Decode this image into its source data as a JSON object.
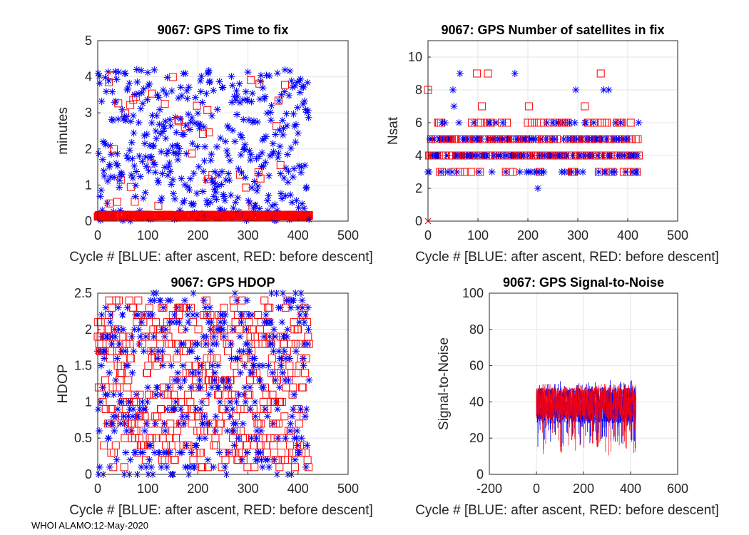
{
  "footer": "WHOI ALAMO:12-May-2020",
  "colors": {
    "after_ascent": "#0000ff",
    "before_descent": "#ff0000",
    "grid": "#e6e6e6",
    "axis": "#262626"
  },
  "chart_data": [
    {
      "id": "time_to_fix",
      "type": "scatter",
      "title": "9067: GPS Time to fix",
      "xlabel": "Cycle #  [BLUE: after ascent, RED: before descent]",
      "ylabel": "minutes",
      "xlim": [
        0,
        500
      ],
      "ylim": [
        0,
        5
      ],
      "xticks": [
        0,
        100,
        200,
        300,
        400,
        500
      ],
      "yticks": [
        0,
        1,
        2,
        3,
        4,
        5
      ],
      "cycles": [
        0,
        422
      ],
      "series": [
        {
          "name": "after ascent",
          "color": "#0000ff",
          "marker": "asterisk",
          "description": "uniformly scattered between 0 and ~4.2 minutes",
          "min": 0.0,
          "max": 4.2
        },
        {
          "name": "before descent",
          "color": "#ff0000",
          "marker": "square",
          "description": "mostly near 0.15 minutes with occasional outliers up to ~4.2",
          "baseline": 0.15,
          "max": 4.2
        }
      ]
    },
    {
      "id": "num_satellites",
      "type": "scatter",
      "title": "9067: GPS Number of satellites in fix",
      "xlabel": "Cycle #  [BLUE: after ascent, RED: before descent]",
      "ylabel": "Nsat",
      "xlim": [
        0,
        500
      ],
      "ylim": [
        0,
        11
      ],
      "xticks": [
        0,
        100,
        200,
        300,
        400,
        500
      ],
      "yticks": [
        0,
        2,
        4,
        6,
        8,
        10
      ],
      "cycles": [
        0,
        422
      ],
      "levels": [
        2,
        3,
        4,
        5,
        6,
        7,
        8,
        9
      ],
      "series": [
        {
          "name": "after ascent",
          "color": "#0000ff",
          "marker": "asterisk",
          "typical": [
            3,
            4,
            5,
            6
          ]
        },
        {
          "name": "before descent",
          "color": "#ff0000",
          "marker": "square",
          "typical": [
            3,
            4,
            5,
            6
          ]
        }
      ],
      "annotation": {
        "x": 0,
        "y": 0,
        "marker": "x",
        "color": "#ff0000"
      }
    },
    {
      "id": "hdop",
      "type": "scatter",
      "title": "9067: GPS HDOP",
      "xlabel": "Cycle #  [BLUE: after ascent, RED: before descent]",
      "ylabel": "HDOP",
      "xlim": [
        0,
        500
      ],
      "ylim": [
        0,
        2.5
      ],
      "xticks": [
        0,
        100,
        200,
        300,
        400,
        500
      ],
      "yticks": [
        0,
        0.5,
        1,
        1.5,
        2,
        2.5
      ],
      "ytick_labels": [
        "0",
        "0.5",
        "1",
        "1.5",
        "2",
        "2.5"
      ],
      "cycles": [
        0,
        422
      ],
      "series": [
        {
          "name": "after ascent",
          "color": "#0000ff",
          "marker": "asterisk",
          "range": [
            0,
            2.5
          ],
          "step": 0.1
        },
        {
          "name": "before descent",
          "color": "#ff0000",
          "marker": "square",
          "range": [
            0.1,
            2.4
          ],
          "step": 0.1
        }
      ]
    },
    {
      "id": "snr",
      "type": "line",
      "title": "9067: GPS Signal-to-Noise",
      "xlabel": "Cycle #  [BLUE: after ascent, RED: before descent]",
      "ylabel": "Signal-to-Noise",
      "xlim": [
        -200,
        600
      ],
      "ylim": [
        0,
        100
      ],
      "xticks": [
        -200,
        0,
        200,
        400,
        600
      ],
      "yticks": [
        0,
        20,
        40,
        60,
        80,
        100
      ],
      "cycles": [
        0,
        422
      ],
      "series": [
        {
          "name": "after ascent",
          "color": "#0000ff",
          "typical_range": [
            28,
            48
          ],
          "min": 15,
          "max": 52
        },
        {
          "name": "before descent",
          "color": "#ff0000",
          "typical_range": [
            30,
            48
          ],
          "min": 10,
          "max": 50
        }
      ]
    }
  ]
}
